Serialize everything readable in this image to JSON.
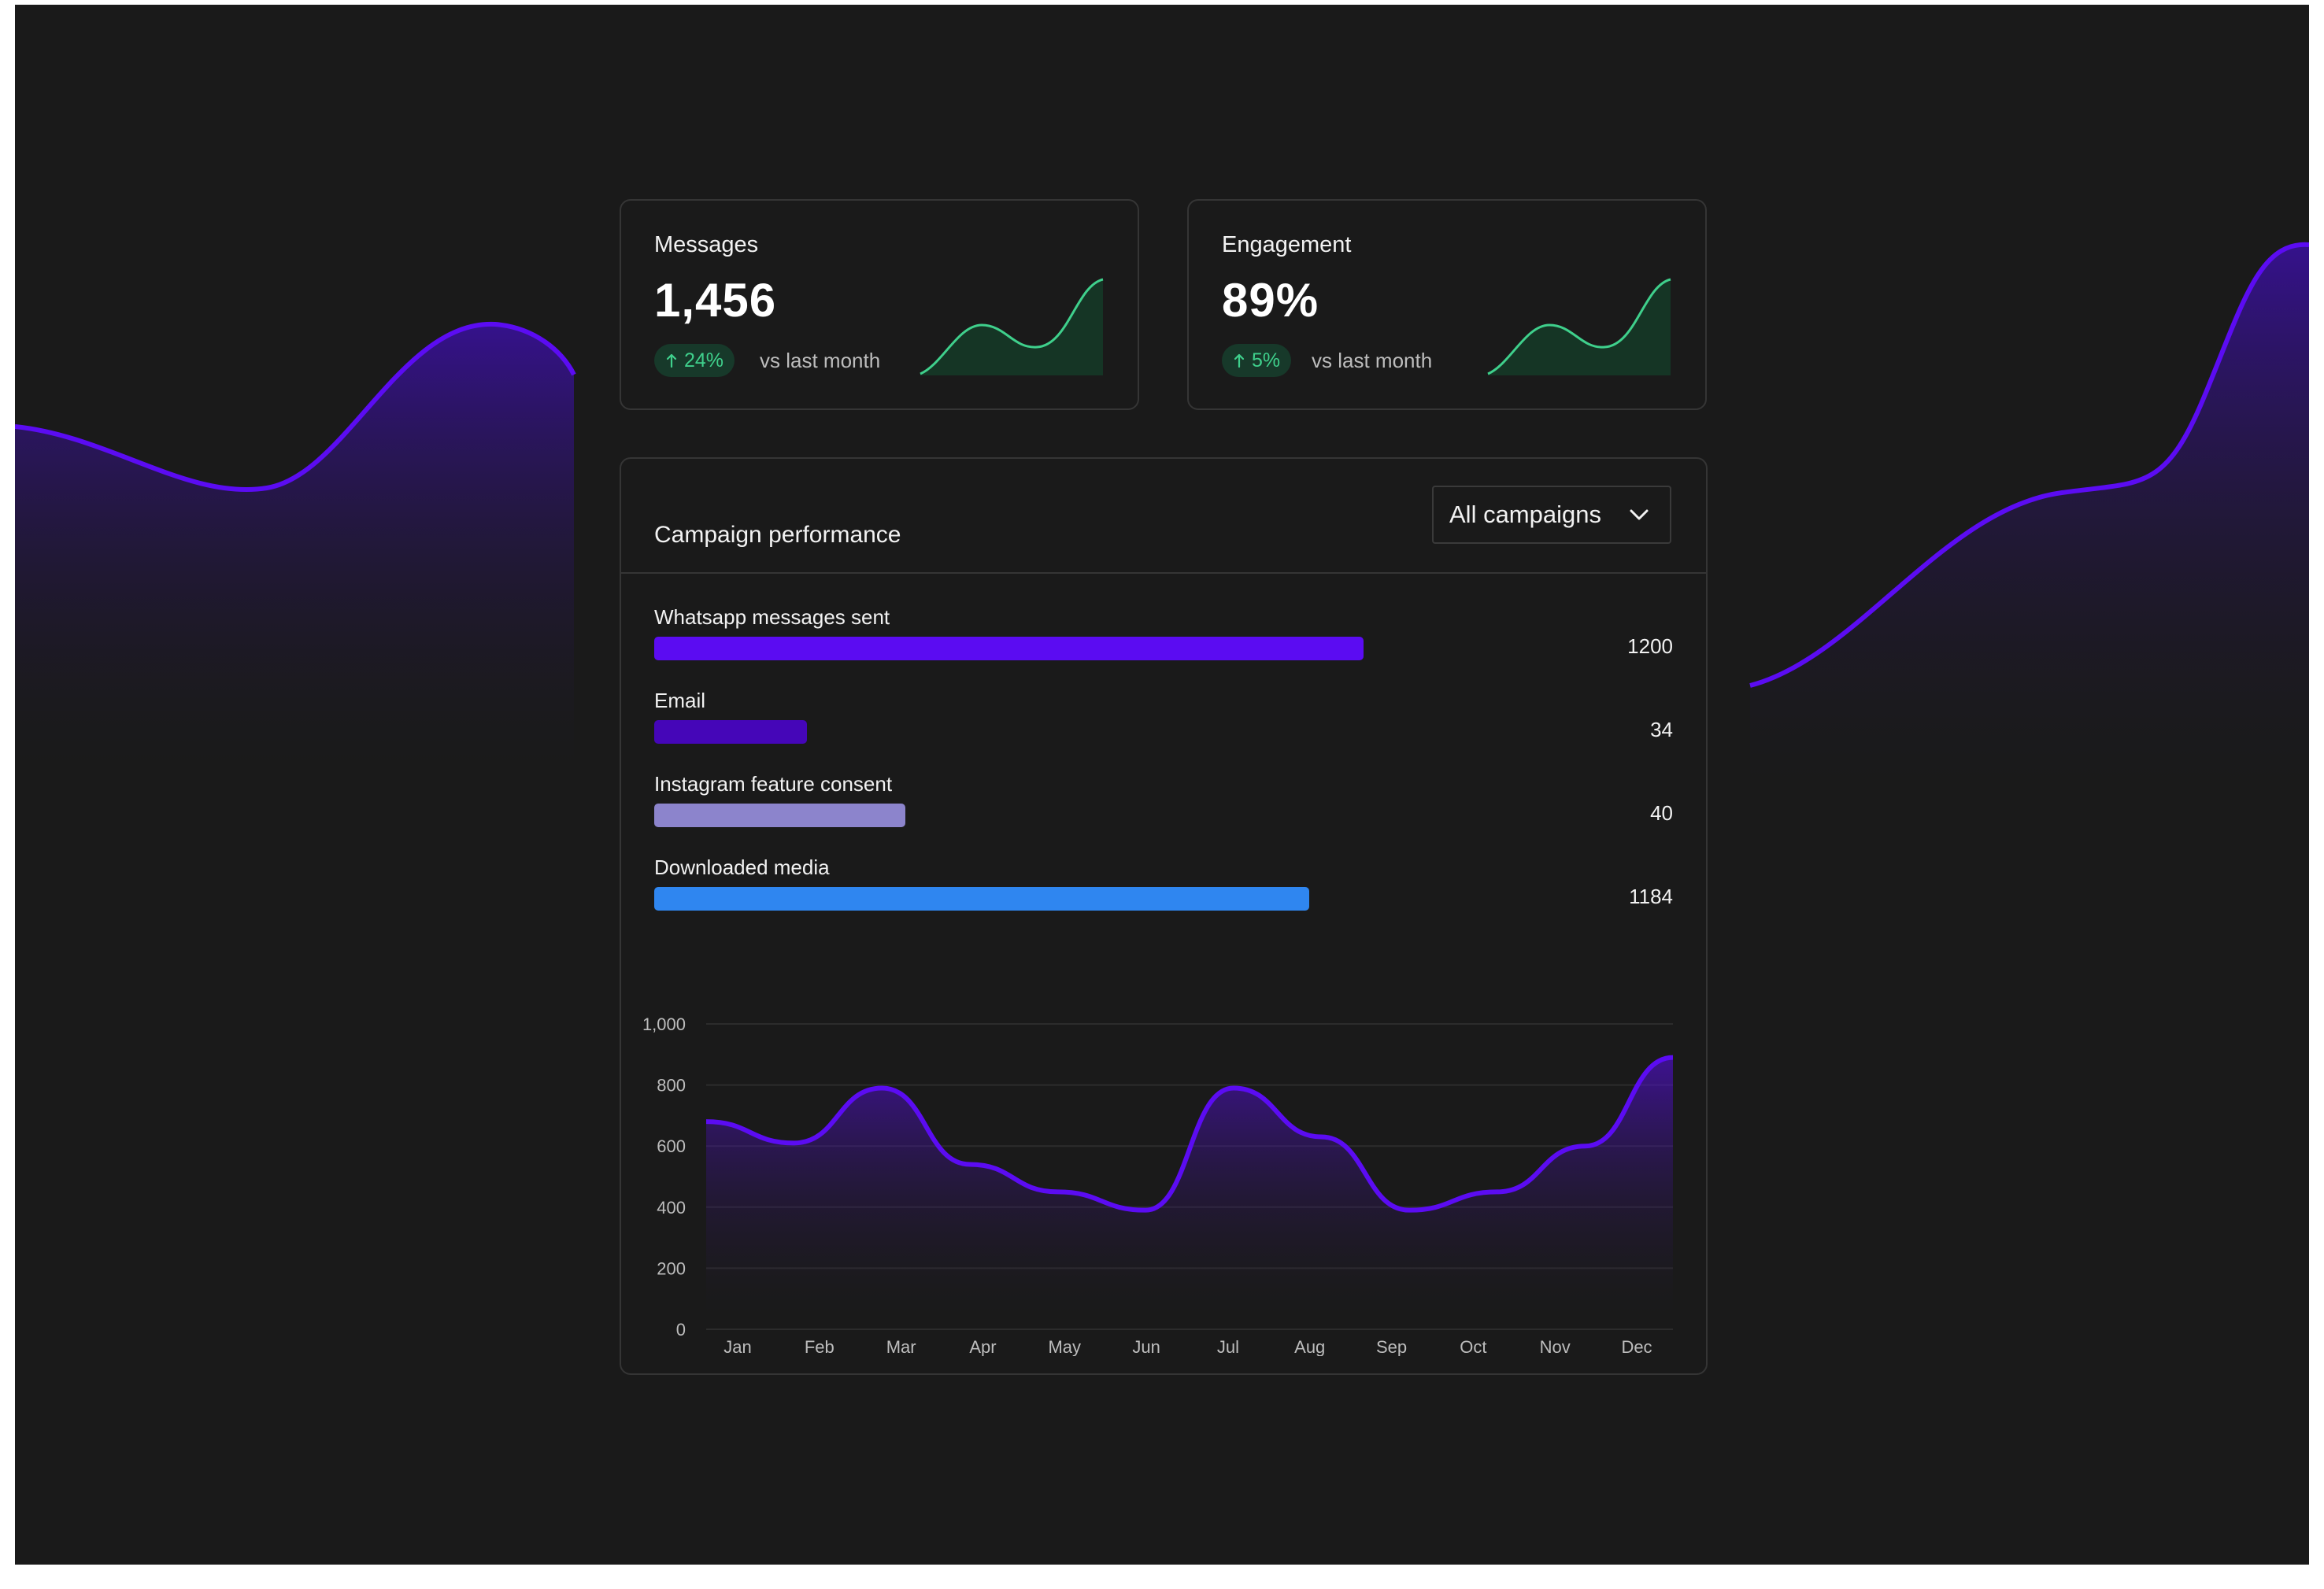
{
  "colors": {
    "background": "#1a1a1a",
    "accent": "#5b0cf2",
    "positive": "#3fd08c",
    "positive_bg": "#17392a"
  },
  "stats": [
    {
      "title": "Messages",
      "value": "1,456",
      "change": "24%",
      "change_icon": "arrow-up-icon",
      "comparison": "vs last month"
    },
    {
      "title": "Engagement",
      "value": "89%",
      "change": "5%",
      "change_icon": "arrow-up-icon",
      "comparison": "vs last month"
    }
  ],
  "campaign": {
    "title": "Campaign performance",
    "filter": {
      "selected": "All campaigns",
      "icon": "chevron-down-icon"
    }
  },
  "chart_data": [
    {
      "type": "bar",
      "orientation": "horizontal",
      "categories": [
        "Whatsapp messages sent",
        "Email",
        "Instagram feature consent",
        "Downloaded media"
      ],
      "values": [
        1200,
        34,
        40,
        1184
      ],
      "value_labels": [
        "1200",
        "34",
        "40",
        "1184"
      ],
      "fill_fractions": [
        0.79,
        0.17,
        0.28,
        0.73
      ],
      "colors": [
        "#5b0cf2",
        "#4506b8",
        "#8c84cc",
        "#2f86f0"
      ]
    },
    {
      "type": "area",
      "categories": [
        "Jan",
        "Feb",
        "Mar",
        "Apr",
        "May",
        "Jun",
        "Jul",
        "Aug",
        "Sep",
        "Oct",
        "Nov",
        "Dec"
      ],
      "values": [
        680,
        610,
        790,
        540,
        450,
        390,
        790,
        630,
        390,
        450,
        600,
        890
      ],
      "ylim": [
        0,
        1000
      ],
      "yticks": [
        0,
        200,
        400,
        600,
        800,
        1000
      ],
      "ytick_labels": [
        "0",
        "200",
        "400",
        "600",
        "800",
        "1,000"
      ],
      "grid": true,
      "color": "#5b0cf2"
    }
  ]
}
